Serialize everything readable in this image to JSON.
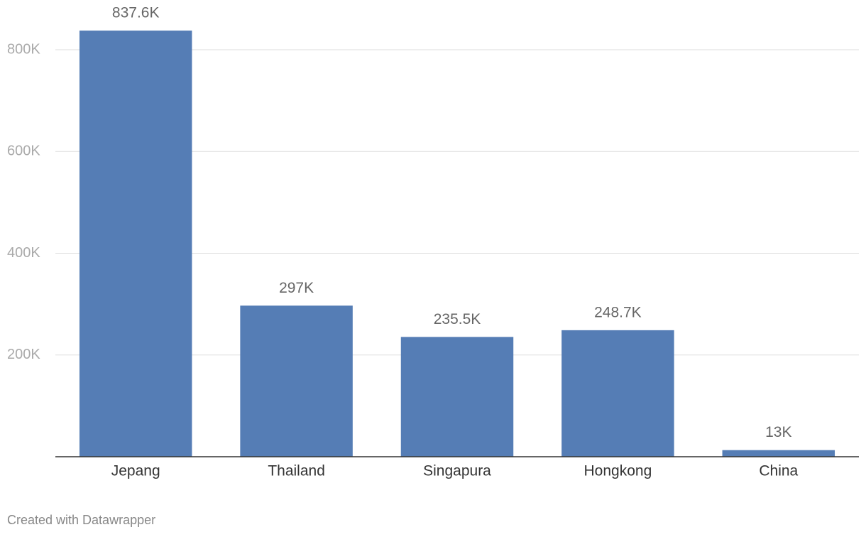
{
  "chart_data": {
    "type": "bar",
    "categories": [
      "Jepang",
      "Thailand",
      "Singapura",
      "Hongkong",
      "China"
    ],
    "values": [
      837600,
      297000,
      235500,
      248700,
      13000
    ],
    "value_labels": [
      "837.6K",
      "297K",
      "235.5K",
      "248.7K",
      "13K"
    ],
    "color": "#557db5",
    "ylim": [
      0,
      800000
    ],
    "yticks": [
      {
        "value": 200000,
        "label": "200K"
      },
      {
        "value": 400000,
        "label": "400K"
      },
      {
        "value": 600000,
        "label": "600K"
      },
      {
        "value": 800000,
        "label": "800K"
      }
    ],
    "grid": true,
    "credit": "Created with Datawrapper"
  }
}
